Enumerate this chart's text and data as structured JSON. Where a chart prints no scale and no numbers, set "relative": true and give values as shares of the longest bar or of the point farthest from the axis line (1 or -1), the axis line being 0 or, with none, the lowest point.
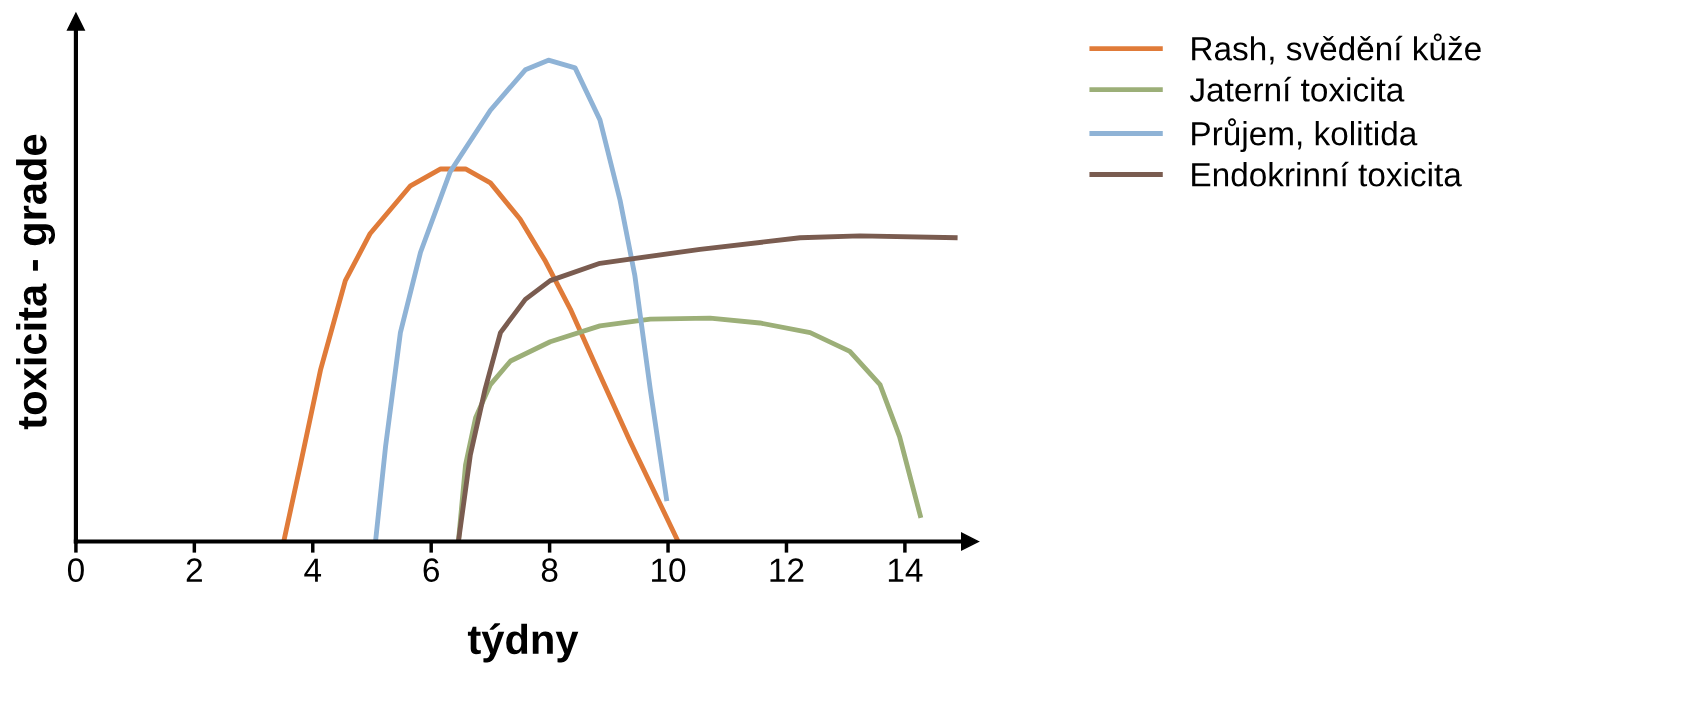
{
  "chart_data": {
    "type": "line",
    "xlabel": "týdny",
    "ylabel": "toxicita - grade",
    "relative": true,
    "xlim": [
      0,
      15.1
    ],
    "xticks": [
      0,
      2,
      4,
      6,
      8,
      10,
      12,
      14
    ],
    "tick_labels": "x",
    "grid": false,
    "legend": "top right",
    "marker": "none",
    "line_style": "solid",
    "series": [
      {
        "name": "Rash, svědění kůže",
        "color": "#e07b39",
        "x": [
          3.51,
          3.79,
          4.13,
          4.55,
          4.97,
          5.65,
          6.16,
          6.58,
          7.0,
          7.5,
          7.93,
          8.35,
          8.85,
          9.36,
          10.17
        ],
        "values": [
          0,
          0.159,
          0.356,
          0.542,
          0.64,
          0.739,
          0.774,
          0.774,
          0.745,
          0.67,
          0.582,
          0.483,
          0.346,
          0.208,
          0
        ]
      },
      {
        "name": "Jaterní toxicita",
        "color": "#9caf78",
        "x": [
          6.46,
          6.58,
          6.75,
          7.0,
          7.34,
          8.01,
          8.85,
          9.7,
          10.71,
          11.55,
          12.4,
          13.07,
          13.58,
          13.91,
          14.27
        ],
        "values": [
          0,
          0.159,
          0.257,
          0.326,
          0.375,
          0.415,
          0.448,
          0.462,
          0.464,
          0.454,
          0.434,
          0.395,
          0.326,
          0.218,
          0.049
        ]
      },
      {
        "name": "Průjem, kolitida",
        "color": "#8fb3d6",
        "x": [
          5.06,
          5.23,
          5.48,
          5.82,
          6.32,
          7.0,
          7.59,
          7.98,
          8.43,
          8.85,
          9.19,
          9.44,
          9.7,
          9.98
        ],
        "values": [
          0,
          0.198,
          0.434,
          0.601,
          0.768,
          0.896,
          0.98,
          1.0,
          0.984,
          0.876,
          0.709,
          0.552,
          0.316,
          0.084
        ]
      },
      {
        "name": "Endokrinní toxicita",
        "color": "#7a5c50",
        "x": [
          6.46,
          6.66,
          6.91,
          7.17,
          7.59,
          8.01,
          8.85,
          10.54,
          12.23,
          13.24,
          14.89
        ],
        "values": [
          0,
          0.179,
          0.316,
          0.434,
          0.503,
          0.542,
          0.578,
          0.607,
          0.631,
          0.635,
          0.631
        ]
      }
    ]
  }
}
